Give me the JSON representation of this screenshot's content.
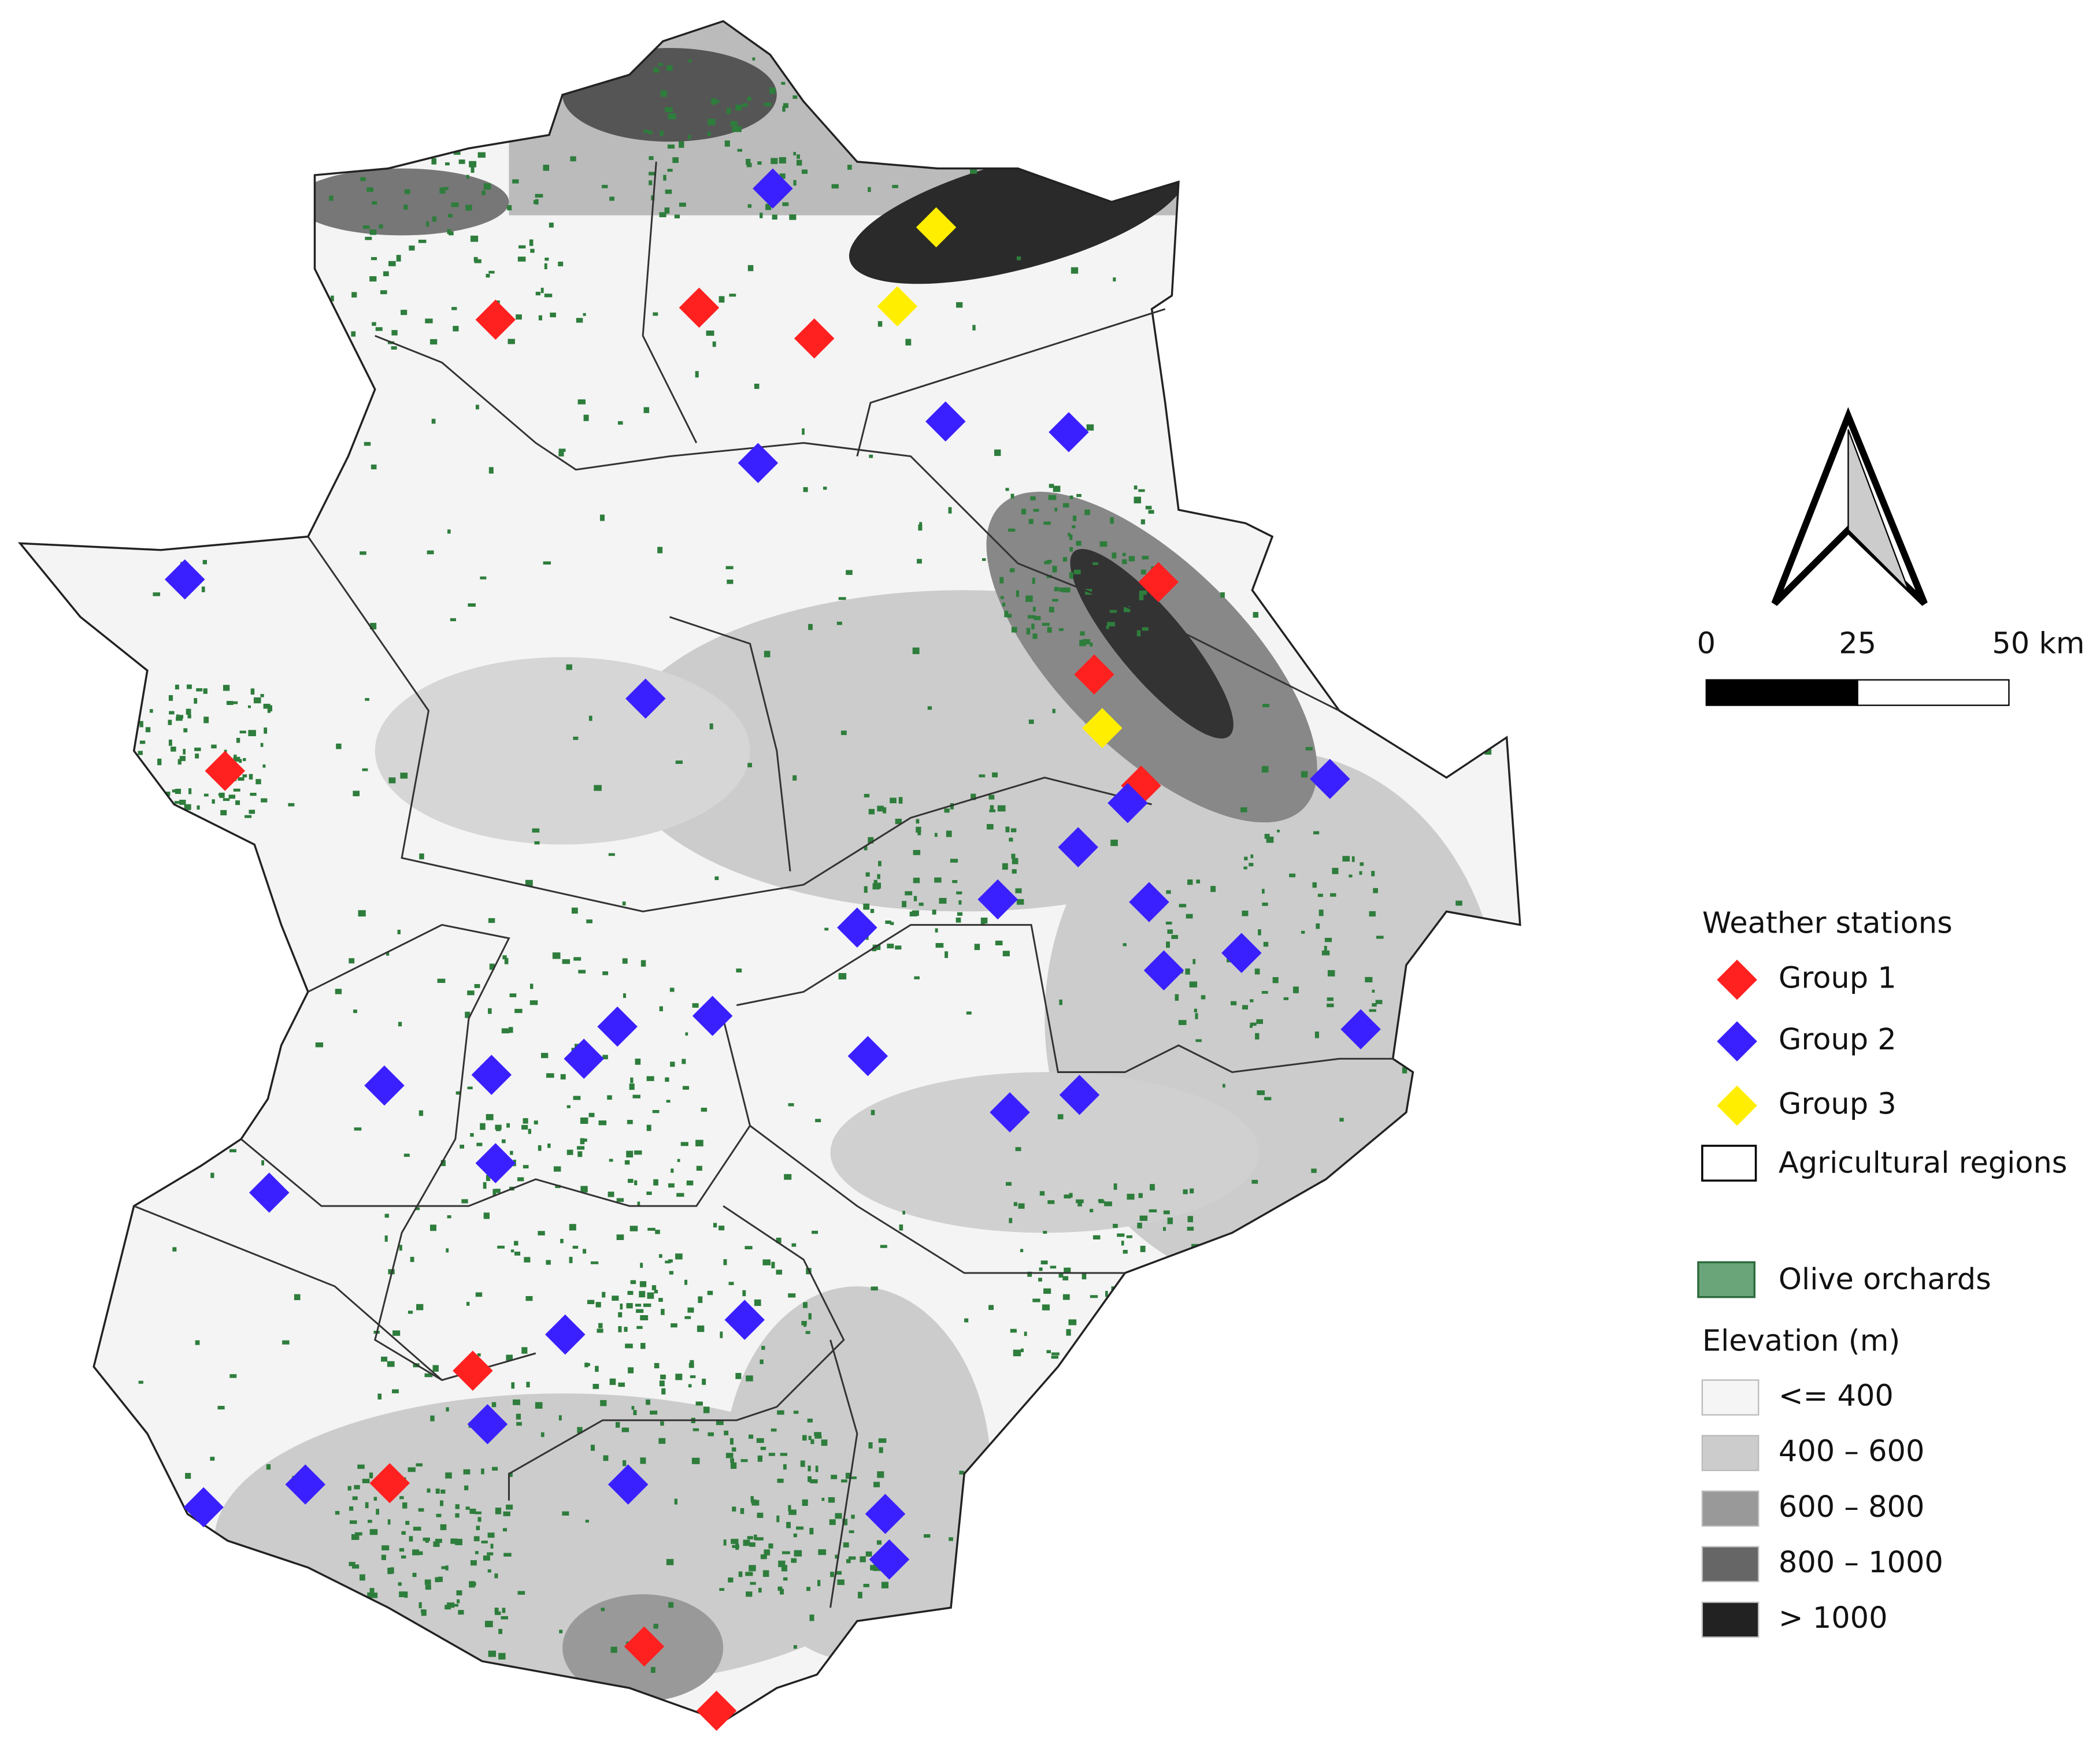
{
  "legend": {
    "stations_title": "Weather stations",
    "groups": [
      "Group 1",
      "Group 2",
      "Group 3"
    ],
    "regions": "Agricultural regions",
    "olive": "Olive orchards",
    "elevation_title": "Elevation (m)",
    "elevation_classes": [
      "<= 400",
      "400 – 600",
      "600 – 800",
      "800 – 1000",
      "> 1000"
    ]
  },
  "scale_bar": {
    "labels": [
      "0",
      "25",
      "50 km"
    ]
  }
}
